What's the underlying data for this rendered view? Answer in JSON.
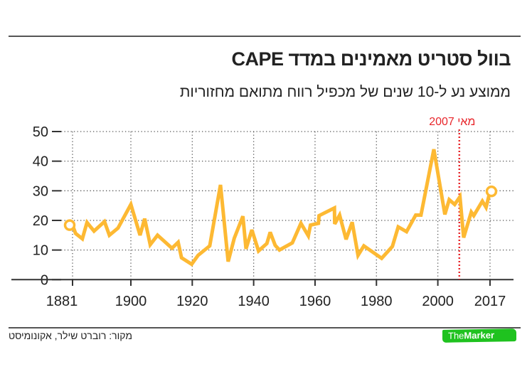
{
  "header": {
    "title": "בוול סטריט מאמינים במדד CAPE",
    "subtitle": "ממוצע נע ל-10 שנים של מכפיל רווח מתואם מחזוריות"
  },
  "footer": {
    "source": "מקור: רוברט שילר, אקונומיסט",
    "logo_the": "The",
    "logo_marker": "Marker"
  },
  "colors": {
    "line": "#fdb933",
    "marker_line": "#e8262b",
    "grid": "#555555",
    "axis": "#333333",
    "logo": "#1fc21f"
  },
  "chart_data": {
    "type": "line",
    "title": "בוול סטריט מאמינים במדד CAPE",
    "subtitle": "ממוצע נע ל-10 שנים של מכפיל רווח מתואם מחזוריות",
    "xlabel": "",
    "ylabel": "",
    "xlim": [
      1881,
      2017
    ],
    "ylim": [
      0,
      50
    ],
    "x_ticks": [
      1881,
      1900,
      1920,
      1940,
      1960,
      1980,
      2000,
      2017
    ],
    "x_tick_labels": [
      "1881",
      "1900",
      "1920",
      "1940",
      "1960",
      "1980",
      "2000",
      "2017"
    ],
    "y_ticks": [
      0,
      10,
      20,
      30,
      40,
      50
    ],
    "y_tick_labels": [
      "0",
      "10",
      "20",
      "30",
      "40",
      "50"
    ],
    "grid": true,
    "annotation": {
      "x": 2007,
      "label": "מאי 2007"
    },
    "series": [
      {
        "name": "CAPE",
        "x": [
          1881,
          1882,
          1884.2,
          1885.7,
          1888,
          1891.4,
          1893,
          1895.8,
          1900,
          1903,
          1904.5,
          1906.3,
          1908.7,
          1913.4,
          1915.4,
          1916.5,
          1919.8,
          1921.9,
          1925.7,
          1929.2,
          1931.7,
          1933.7,
          1936.5,
          1937.5,
          1939.4,
          1941.6,
          1944.3,
          1945.4,
          1947,
          1948.4,
          1952.6,
          1955.4,
          1957.8,
          1958.5,
          1961.1,
          1961.3,
          1966.3,
          1966.4,
          1968,
          1970.1,
          1972.1,
          1974,
          1975.9,
          1981.7,
          1985.2,
          1987.1,
          1989.8,
          1992.8,
          1994.5,
          1998.7,
          2002.3,
          2003.7,
          2005.5,
          2007.2,
          2008.4,
          2010.9,
          2011.7,
          2014.5,
          2015.7,
          2017
        ],
        "values": [
          18.4,
          15.6,
          13.8,
          19.3,
          16.4,
          19.6,
          15,
          17.4,
          25.4,
          15,
          20.6,
          11.8,
          15,
          10.6,
          12.6,
          7.4,
          5.2,
          8.2,
          11.4,
          32,
          6.1,
          14,
          21.4,
          10.4,
          16.8,
          9.7,
          12.2,
          16,
          11.6,
          10,
          12.4,
          19,
          14.8,
          18.4,
          19,
          21.6,
          24.2,
          18.8,
          21.8,
          13.6,
          19.4,
          8.2,
          11.4,
          7.2,
          11.2,
          17.8,
          16.2,
          21.8,
          21.8,
          44,
          22,
          27,
          25.4,
          28,
          14.2,
          22.8,
          21.6,
          26.5,
          24.4,
          29.8
        ]
      }
    ]
  }
}
